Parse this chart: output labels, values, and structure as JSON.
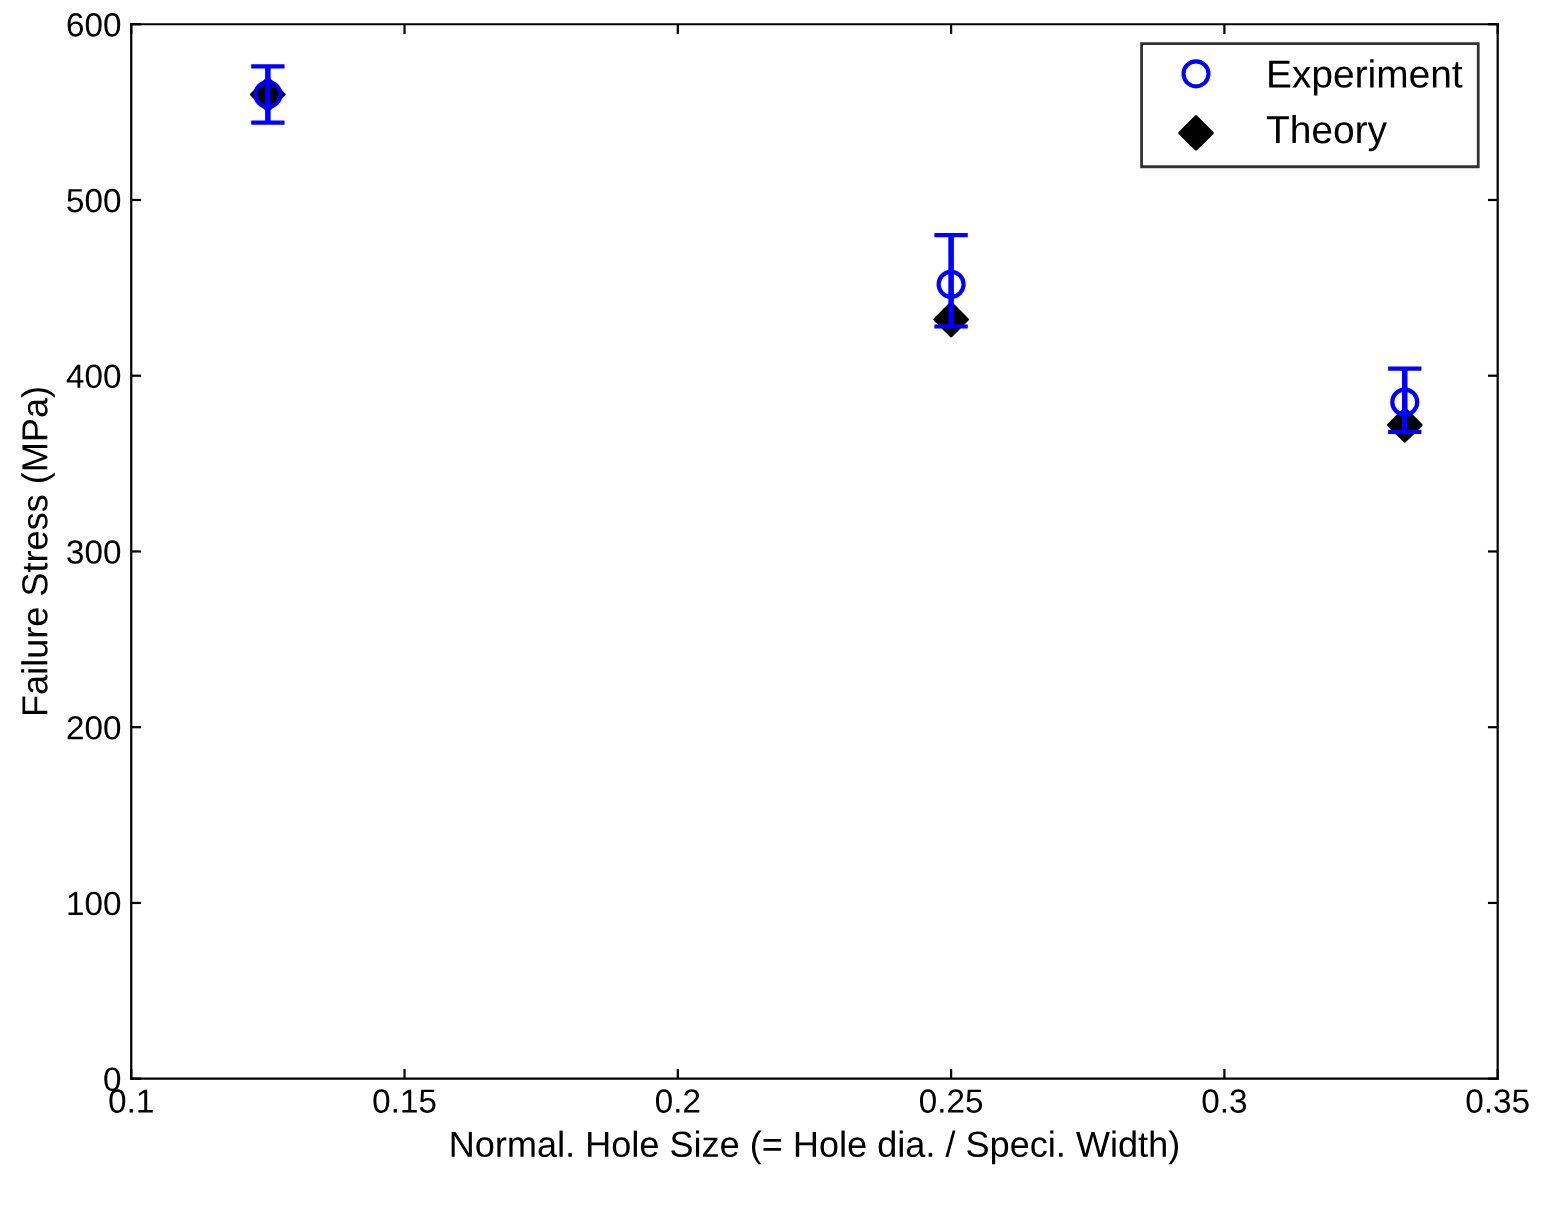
{
  "chart_data": {
    "type": "scatter",
    "xlabel": "Normal. Hole Size (= Hole dia. / Speci. Width)",
    "ylabel": "Failure Stress (MPa)",
    "x": [
      0.125,
      0.25,
      0.333
    ],
    "series": [
      {
        "name": "Experiment",
        "color": "#0000ff",
        "marker": "circle",
        "values": [
          560,
          452,
          385
        ],
        "errors": [
          [
            544,
            576
          ],
          [
            428,
            480
          ],
          [
            368,
            404
          ]
        ]
      },
      {
        "name": "Theory",
        "color": "#000000",
        "marker": "diamond",
        "values": [
          560,
          432,
          372
        ]
      }
    ],
    "xlim": [
      0.1,
      0.35
    ],
    "xticks": [
      0.1,
      0.15,
      0.2,
      0.25,
      0.3,
      0.35
    ],
    "ylim": [
      0,
      600
    ],
    "yticks": [
      0,
      100,
      200,
      300,
      400,
      500,
      600
    ],
    "grid": false,
    "legend": "top right"
  }
}
